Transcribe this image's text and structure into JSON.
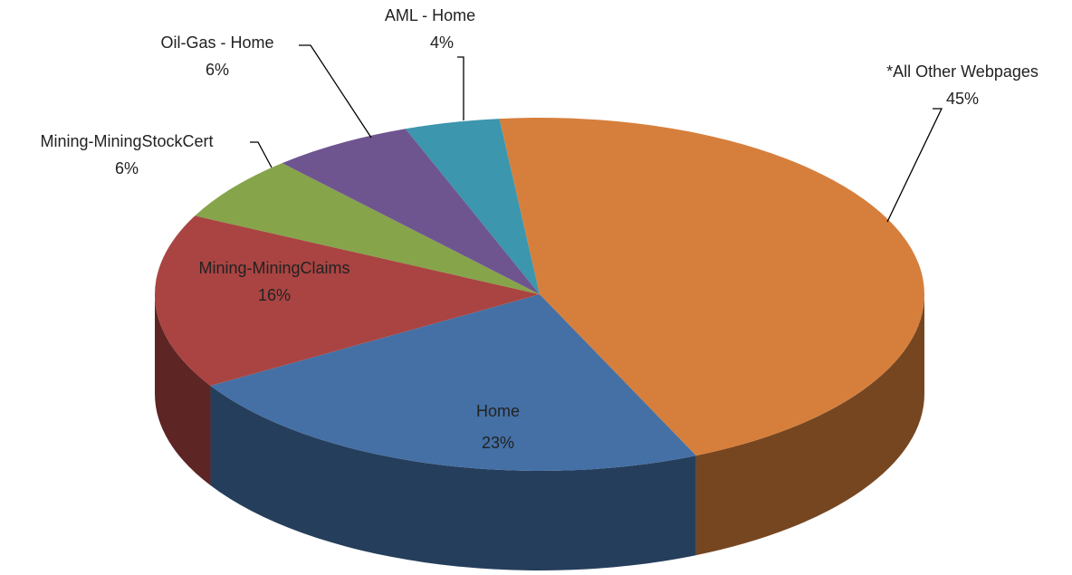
{
  "chart_data": {
    "type": "pie3d",
    "categories": [
      "*All Other Webpages",
      "Home",
      "Mining-MiningClaims",
      "Mining-MiningStockCert",
      "Oil-Gas - Home",
      "AML - Home"
    ],
    "values": [
      45,
      23,
      16,
      6,
      6,
      4
    ],
    "value_labels": [
      "45%",
      "23%",
      "16%",
      "6%",
      "6%",
      "4%"
    ],
    "colors": [
      "#d67f3c",
      "#4470a5",
      "#a94442",
      "#86a44a",
      "#6f5590",
      "#3c96ad"
    ]
  }
}
